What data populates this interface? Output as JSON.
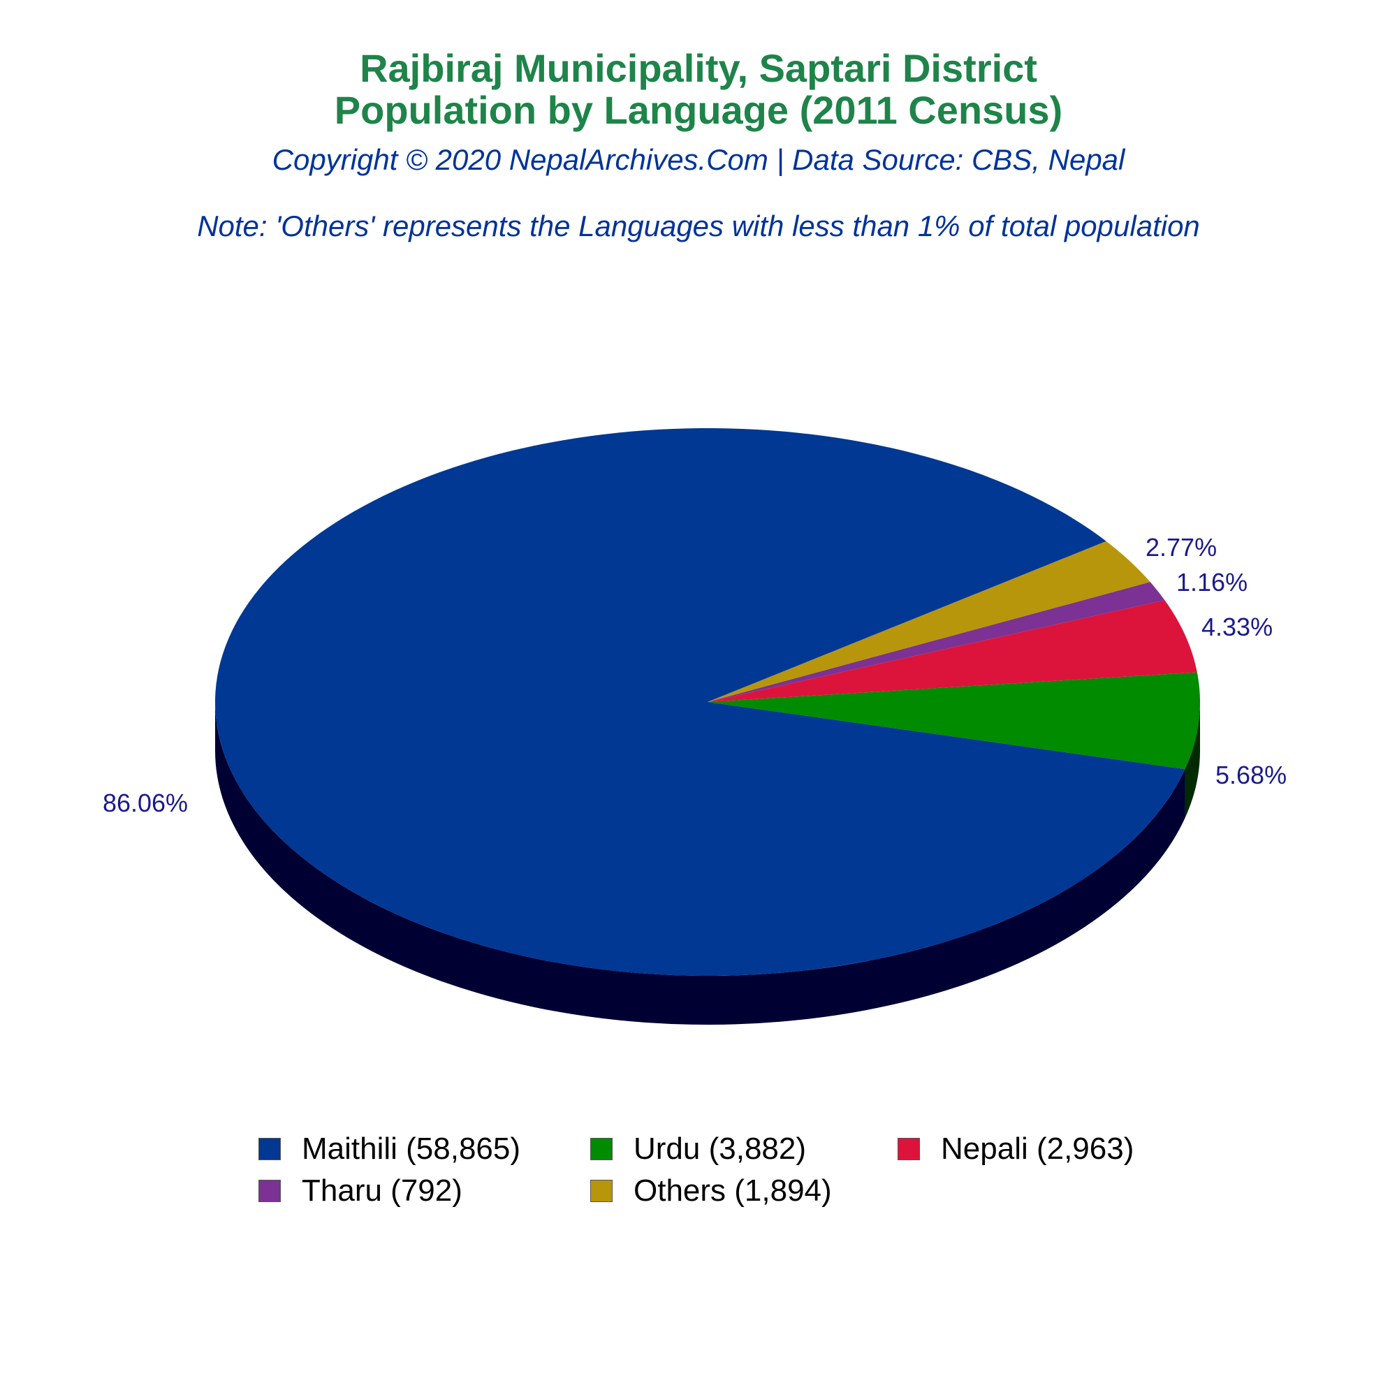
{
  "title": [
    "Rajbiraj Municipality, Saptari District",
    "Population by Language (2011 Census)"
  ],
  "subtitle": "Copyright © 2020 NepalArchives.Com | Data Source: CBS, Nepal",
  "note": "Note: 'Others' represents the Languages with less than 1% of total population",
  "chart_data": {
    "type": "pie",
    "style": "3d",
    "slices": [
      {
        "label": "Maithili (58,865)",
        "name": "Maithili",
        "value": 58865,
        "percent_label": "86.06%",
        "color": "#003893"
      },
      {
        "label": "Urdu (3,882)",
        "name": "Urdu",
        "value": 3882,
        "percent_label": "5.68%",
        "color": "#008b00"
      },
      {
        "label": "Nepali (2,963)",
        "name": "Nepali",
        "value": 2963,
        "percent_label": "4.33%",
        "color": "#dc143c"
      },
      {
        "label": "Tharu (792)",
        "name": "Tharu",
        "value": 792,
        "percent_label": "1.16%",
        "color": "#7b3294"
      },
      {
        "label": "Others (1,894)",
        "name": "Others",
        "value": 1894,
        "percent_label": "2.77%",
        "color": "#b8960c"
      }
    ],
    "label_color": "#1a1a8c",
    "legend_position": "bottom"
  }
}
